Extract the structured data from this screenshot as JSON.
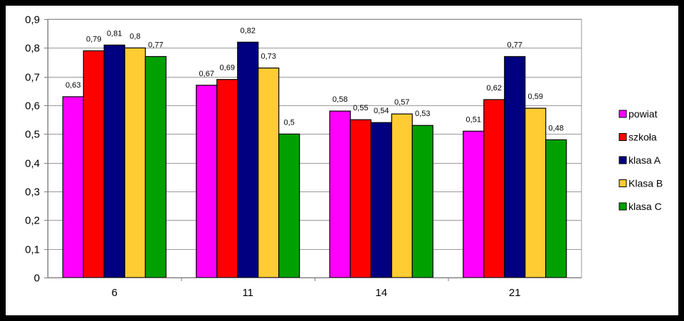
{
  "chart_data": {
    "type": "bar",
    "title": "",
    "xlabel": "",
    "ylabel": "",
    "categories": [
      "6",
      "11",
      "14",
      "21"
    ],
    "ylim": [
      0,
      0.9
    ],
    "yticks": [
      "0",
      "0,1",
      "0,2",
      "0,3",
      "0,4",
      "0,5",
      "0,6",
      "0,7",
      "0,8",
      "0,9"
    ],
    "grid": true,
    "legend_position": "right",
    "series": [
      {
        "name": "powiat",
        "color": "#FF00FF",
        "values": [
          0.63,
          0.67,
          0.58,
          0.51
        ],
        "labels": [
          "0,63",
          "0,67",
          "0,58",
          "0,51"
        ]
      },
      {
        "name": "szkoła",
        "color": "#FF0000",
        "values": [
          0.79,
          0.69,
          0.55,
          0.62
        ],
        "labels": [
          "0,79",
          "0,69",
          "0,55",
          "0,62"
        ]
      },
      {
        "name": "klasa A",
        "color": "#000080",
        "values": [
          0.81,
          0.82,
          0.54,
          0.77
        ],
        "labels": [
          "0,81",
          "0,82",
          "0,54",
          "0,77"
        ]
      },
      {
        "name": "Klasa B",
        "color": "#FFCC33",
        "values": [
          0.8,
          0.73,
          0.57,
          0.59
        ],
        "labels": [
          "0,8",
          "0,73",
          "0,57",
          "0,59"
        ]
      },
      {
        "name": "klasa C",
        "color": "#00A000",
        "values": [
          0.77,
          0.5,
          0.53,
          0.48
        ],
        "labels": [
          "0,77",
          "0,5",
          "0,53",
          "0,48"
        ]
      }
    ]
  }
}
